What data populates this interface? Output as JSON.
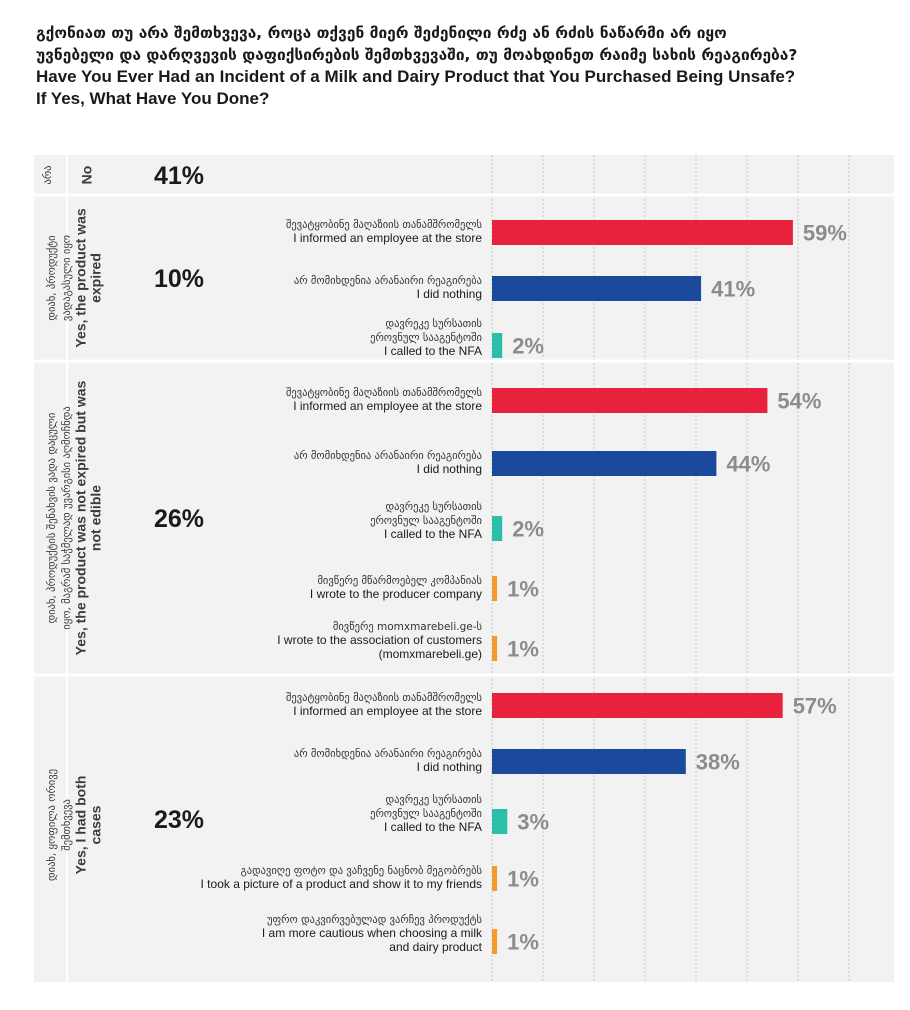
{
  "title": {
    "line1": "გქონიათ თუ არა შემთხვევა, როცა თქვენ მიერ შეძენილი რძე ან რძის ნაწარმი არ იყო",
    "line2": "უვნებელი და დარღვევის დაფიქსირების შემთხვევაში, თუ მოახდინეთ რაიმე სახის რეაგირება?",
    "line3": "Have You Ever Had an Incident of a Milk and Dairy Product that You Purchased Being Unsafe?",
    "line4": "If Yes, What Have You Done?"
  },
  "colors": {
    "informed": "#e8213d",
    "nothing": "#1b4a9c",
    "nfa": "#2bbfaa",
    "other": "#f39a2d"
  },
  "chart_data": {
    "type": "bar",
    "orientation": "horizontal",
    "xlim": [
      0,
      100
    ],
    "grid": true,
    "groups": [
      {
        "name_ka": "არა",
        "name_en": "No",
        "share": 41,
        "answers": []
      },
      {
        "name_ka": "დიახ, პროდუქტი ვადაგასული იყო",
        "name_en": "Yes, the product was expired",
        "share": 10,
        "answers": [
          {
            "label_ka": [
              "შევატყობინე მაღაზიის თანამშრომელს"
            ],
            "label_en": [
              "I informed an employee at the store"
            ],
            "value": 59,
            "color": "informed"
          },
          {
            "label_ka": [
              "არ მომიხდენია არანაირი რეაგირება"
            ],
            "label_en": [
              "I did nothing"
            ],
            "value": 41,
            "color": "nothing"
          },
          {
            "label_ka": [
              "დავრეკე სურსათის",
              "ეროვნულ სააგენტოში"
            ],
            "label_en": [
              "I called to the NFA"
            ],
            "value": 2,
            "color": "nfa"
          }
        ]
      },
      {
        "name_ka": "დიახ, პროდუქტის შენახვის ვადა დაცული იყო, მაგრამ საჭმელად უვარგისი აღმოჩნდა",
        "name_en": "Yes, the product was not expired but was not edible",
        "share": 26,
        "answers": [
          {
            "label_ka": [
              "შევატყობინე მაღაზიის თანამშრომელს"
            ],
            "label_en": [
              "I informed an employee at the store"
            ],
            "value": 54,
            "color": "informed"
          },
          {
            "label_ka": [
              "არ მომიხდენია არანაირი რეაგირება"
            ],
            "label_en": [
              "I did nothing"
            ],
            "value": 44,
            "color": "nothing"
          },
          {
            "label_ka": [
              "დავრეკე სურსათის",
              "ეროვნულ სააგენტოში"
            ],
            "label_en": [
              "I called to the NFA"
            ],
            "value": 2,
            "color": "nfa"
          },
          {
            "label_ka": [
              "მივწერე მწარმოებელ კომპანიას"
            ],
            "label_en": [
              "I wrote to the producer company"
            ],
            "value": 1,
            "color": "other"
          },
          {
            "label_ka": [
              "მივწერე momxmarebeli.ge-ს"
            ],
            "label_en": [
              "I wrote to the association of customers",
              "(momxmarebeli.ge)"
            ],
            "value": 1,
            "color": "other"
          }
        ]
      },
      {
        "name_ka": "დიახ, ყოფილა ორივე შემთხვევა",
        "name_en": "Yes, I had both cases",
        "share": 23,
        "answers": [
          {
            "label_ka": [
              "შევატყობინე მაღაზიის თანამშრომელს"
            ],
            "label_en": [
              "I informed an employee at the store"
            ],
            "value": 57,
            "color": "informed"
          },
          {
            "label_ka": [
              "არ მომიხდენია არანაირი რეაგირება"
            ],
            "label_en": [
              "I did nothing"
            ],
            "value": 38,
            "color": "nothing"
          },
          {
            "label_ka": [
              "დავრეკე სურსათის",
              "ეროვნულ სააგენტოში"
            ],
            "label_en": [
              "I called to the NFA"
            ],
            "value": 3,
            "color": "nfa"
          },
          {
            "label_ka": [
              "გადავიღე ფოტო და ვაჩვენე ნაცნობ მეგობრებს"
            ],
            "label_en": [
              "I took a picture of a product and show it to my friends"
            ],
            "value": 1,
            "color": "other"
          },
          {
            "label_ka": [
              "უფრო დაკვირვებულად ვარჩევ პროდუქტს"
            ],
            "label_en": [
              "I am more cautious when choosing a milk",
              "and dairy product"
            ],
            "value": 1,
            "color": "other"
          }
        ]
      }
    ]
  }
}
